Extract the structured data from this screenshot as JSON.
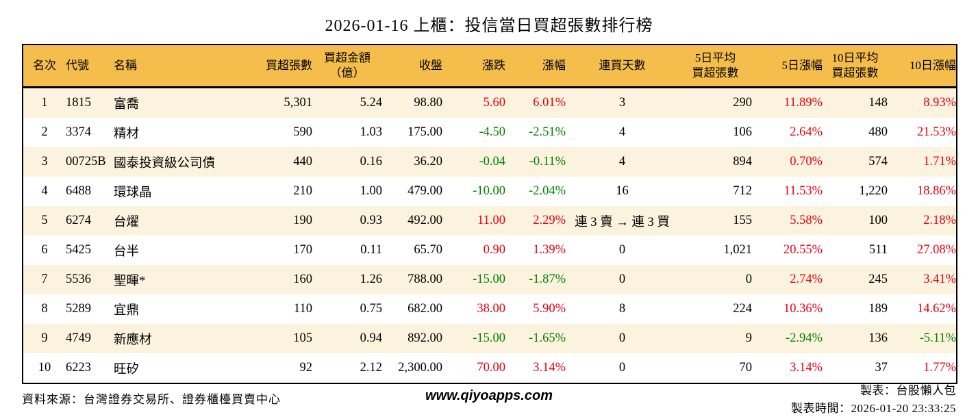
{
  "title": "2026-01-16 上櫃：投信當日買超張數排行榜",
  "colors": {
    "header_bg": "#F5BE4C",
    "row_alt_bg": "#FCF3DE",
    "up_red": "#E60012",
    "down_green": "#008000",
    "border": "#000000"
  },
  "table": {
    "columns": [
      {
        "label": "名次"
      },
      {
        "label": "代號"
      },
      {
        "label": "名稱"
      },
      {
        "label": "買超張數"
      },
      {
        "label": "買超金額\n（億）"
      },
      {
        "label": "收盤"
      },
      {
        "label": "漲跌"
      },
      {
        "label": "漲幅"
      },
      {
        "label": "連買天數"
      },
      {
        "label": "5日平均\n買超張數"
      },
      {
        "label": "5日漲幅"
      },
      {
        "label": "10日平均\n買超張數"
      },
      {
        "label": "10日漲幅"
      }
    ],
    "colored_columns": [
      6,
      7,
      10,
      12
    ],
    "rows": [
      {
        "values": [
          "1",
          "1815",
          "富喬",
          "5,301",
          "5.24",
          "98.80",
          "5.60",
          "6.01%",
          "3",
          "290",
          "11.89%",
          "148",
          "8.93%"
        ]
      },
      {
        "values": [
          "2",
          "3374",
          "精材",
          "590",
          "1.03",
          "175.00",
          "-4.50",
          "-2.51%",
          "4",
          "106",
          "2.64%",
          "480",
          "21.53%"
        ]
      },
      {
        "values": [
          "3",
          "00725B",
          "國泰投資級公司債",
          "440",
          "0.16",
          "36.20",
          "-0.04",
          "-0.11%",
          "4",
          "894",
          "0.70%",
          "574",
          "1.71%"
        ]
      },
      {
        "values": [
          "4",
          "6488",
          "環球晶",
          "210",
          "1.00",
          "479.00",
          "-10.00",
          "-2.04%",
          "16",
          "712",
          "11.53%",
          "1,220",
          "18.86%"
        ]
      },
      {
        "values": [
          "5",
          "6274",
          "台燿",
          "190",
          "0.93",
          "492.00",
          "11.00",
          "2.29%",
          "連 3 賣 → 連 3 買",
          "155",
          "5.58%",
          "100",
          "2.18%"
        ]
      },
      {
        "values": [
          "6",
          "5425",
          "台半",
          "170",
          "0.11",
          "65.70",
          "0.90",
          "1.39%",
          "0",
          "1,021",
          "20.55%",
          "511",
          "27.08%"
        ]
      },
      {
        "values": [
          "7",
          "5536",
          "聖暉*",
          "160",
          "1.26",
          "788.00",
          "-15.00",
          "-1.87%",
          "0",
          "0",
          "2.74%",
          "245",
          "3.41%"
        ]
      },
      {
        "values": [
          "8",
          "5289",
          "宜鼎",
          "110",
          "0.75",
          "682.00",
          "38.00",
          "5.90%",
          "8",
          "224",
          "10.36%",
          "189",
          "14.62%"
        ]
      },
      {
        "values": [
          "9",
          "4749",
          "新應材",
          "105",
          "0.94",
          "892.00",
          "-15.00",
          "-1.65%",
          "0",
          "9",
          "-2.94%",
          "136",
          "-5.11%"
        ]
      },
      {
        "values": [
          "10",
          "6223",
          "旺矽",
          "92",
          "2.12",
          "2,300.00",
          "70.00",
          "3.14%",
          "0",
          "70",
          "3.14%",
          "37",
          "1.77%"
        ]
      }
    ]
  },
  "footer": {
    "source": "資料來源：台灣證券交易所、證券櫃檯買賣中心",
    "website": "www.qiyoapps.com",
    "maker": "製表：台股懶人包",
    "made_time": "製表時間：2026-01-20 23:33:25"
  }
}
